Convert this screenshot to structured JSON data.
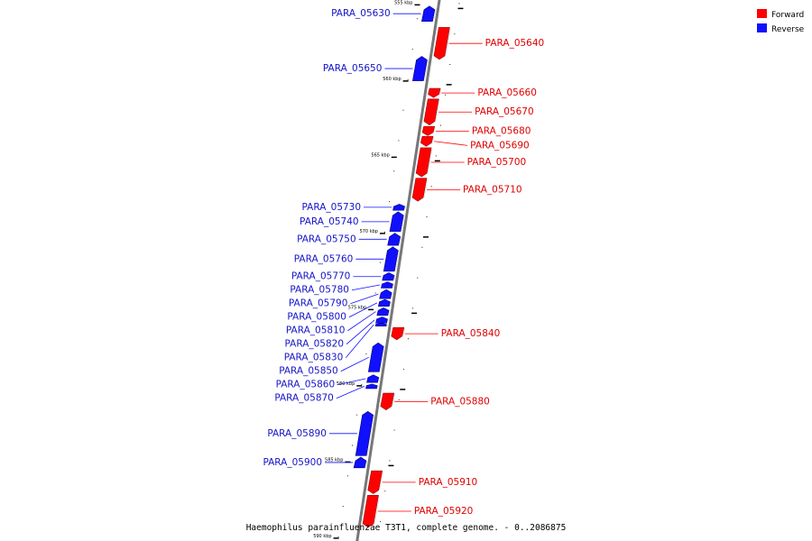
{
  "caption": "Haemophilus parainfluenzae T3T1, complete genome. - 0..2086875",
  "legend": [
    {
      "label": "Forward",
      "color": "#ff0000"
    },
    {
      "label": "Reverse",
      "color": "#1010ff"
    }
  ],
  "scale": [
    {
      "label": "555 kbp",
      "pos": 555
    },
    {
      "label": "560 kbp",
      "pos": 560
    },
    {
      "label": "565 kbp",
      "pos": 565
    },
    {
      "label": "570 kbp",
      "pos": 570
    },
    {
      "label": "575 kbp",
      "pos": 575
    },
    {
      "label": "580 kbp",
      "pos": 580
    },
    {
      "label": "585 kbp",
      "pos": 585
    },
    {
      "label": "590 kbp",
      "pos": 590
    }
  ],
  "genes": [
    {
      "name": "PARA_05630",
      "strand": "reverse",
      "start": 555.2,
      "end": 556.2
    },
    {
      "name": "PARA_05640",
      "strand": "forward",
      "start": 556.6,
      "end": 558.7
    },
    {
      "name": "PARA_05650",
      "strand": "reverse",
      "start": 558.5,
      "end": 560.1
    },
    {
      "name": "PARA_05660",
      "strand": "forward",
      "start": 560.6,
      "end": 561.2
    },
    {
      "name": "PARA_05670",
      "strand": "forward",
      "start": 561.3,
      "end": 563.0
    },
    {
      "name": "PARA_05680",
      "strand": "forward",
      "start": 563.1,
      "end": 563.7
    },
    {
      "name": "PARA_05690",
      "strand": "forward",
      "start": 563.75,
      "end": 564.4
    },
    {
      "name": "PARA_05700",
      "strand": "forward",
      "start": 564.5,
      "end": 566.4
    },
    {
      "name": "PARA_05710",
      "strand": "forward",
      "start": 566.5,
      "end": 568.0
    },
    {
      "name": "PARA_05730",
      "strand": "reverse",
      "start": 568.2,
      "end": 568.6
    },
    {
      "name": "PARA_05740",
      "strand": "reverse",
      "start": 568.7,
      "end": 570.0
    },
    {
      "name": "PARA_05750",
      "strand": "reverse",
      "start": 570.1,
      "end": 570.9
    },
    {
      "name": "PARA_05760",
      "strand": "reverse",
      "start": 571.0,
      "end": 572.6
    },
    {
      "name": "PARA_05770",
      "strand": "reverse",
      "start": 572.7,
      "end": 573.2
    },
    {
      "name": "PARA_05780",
      "strand": "reverse",
      "start": 573.3,
      "end": 573.7
    },
    {
      "name": "PARA_05790",
      "strand": "reverse",
      "start": 573.8,
      "end": 574.4
    },
    {
      "name": "PARA_05800",
      "strand": "reverse",
      "start": 574.45,
      "end": 574.9
    },
    {
      "name": "PARA_05810",
      "strand": "reverse",
      "start": 575.0,
      "end": 575.5
    },
    {
      "name": "PARA_05820",
      "strand": "reverse",
      "start": 575.6,
      "end": 576.0
    },
    {
      "name": "PARA_05830",
      "strand": "reverse",
      "start": 576.0,
      "end": 576.2
    },
    {
      "name": "PARA_05840",
      "strand": "forward",
      "start": 576.3,
      "end": 577.1
    },
    {
      "name": "PARA_05850",
      "strand": "reverse",
      "start": 577.3,
      "end": 579.2
    },
    {
      "name": "PARA_05860",
      "strand": "reverse",
      "start": 579.4,
      "end": 579.9
    },
    {
      "name": "PARA_05870",
      "strand": "reverse",
      "start": 580.0,
      "end": 580.3
    },
    {
      "name": "PARA_05880",
      "strand": "forward",
      "start": 580.6,
      "end": 581.7
    },
    {
      "name": "PARA_05890",
      "strand": "reverse",
      "start": 581.8,
      "end": 584.7
    },
    {
      "name": "PARA_05900",
      "strand": "reverse",
      "start": 584.8,
      "end": 585.5
    },
    {
      "name": "PARA_05910",
      "strand": "forward",
      "start": 585.7,
      "end": 587.2
    },
    {
      "name": "PARA_05920",
      "strand": "forward",
      "start": 587.3,
      "end": 589.4
    }
  ]
}
